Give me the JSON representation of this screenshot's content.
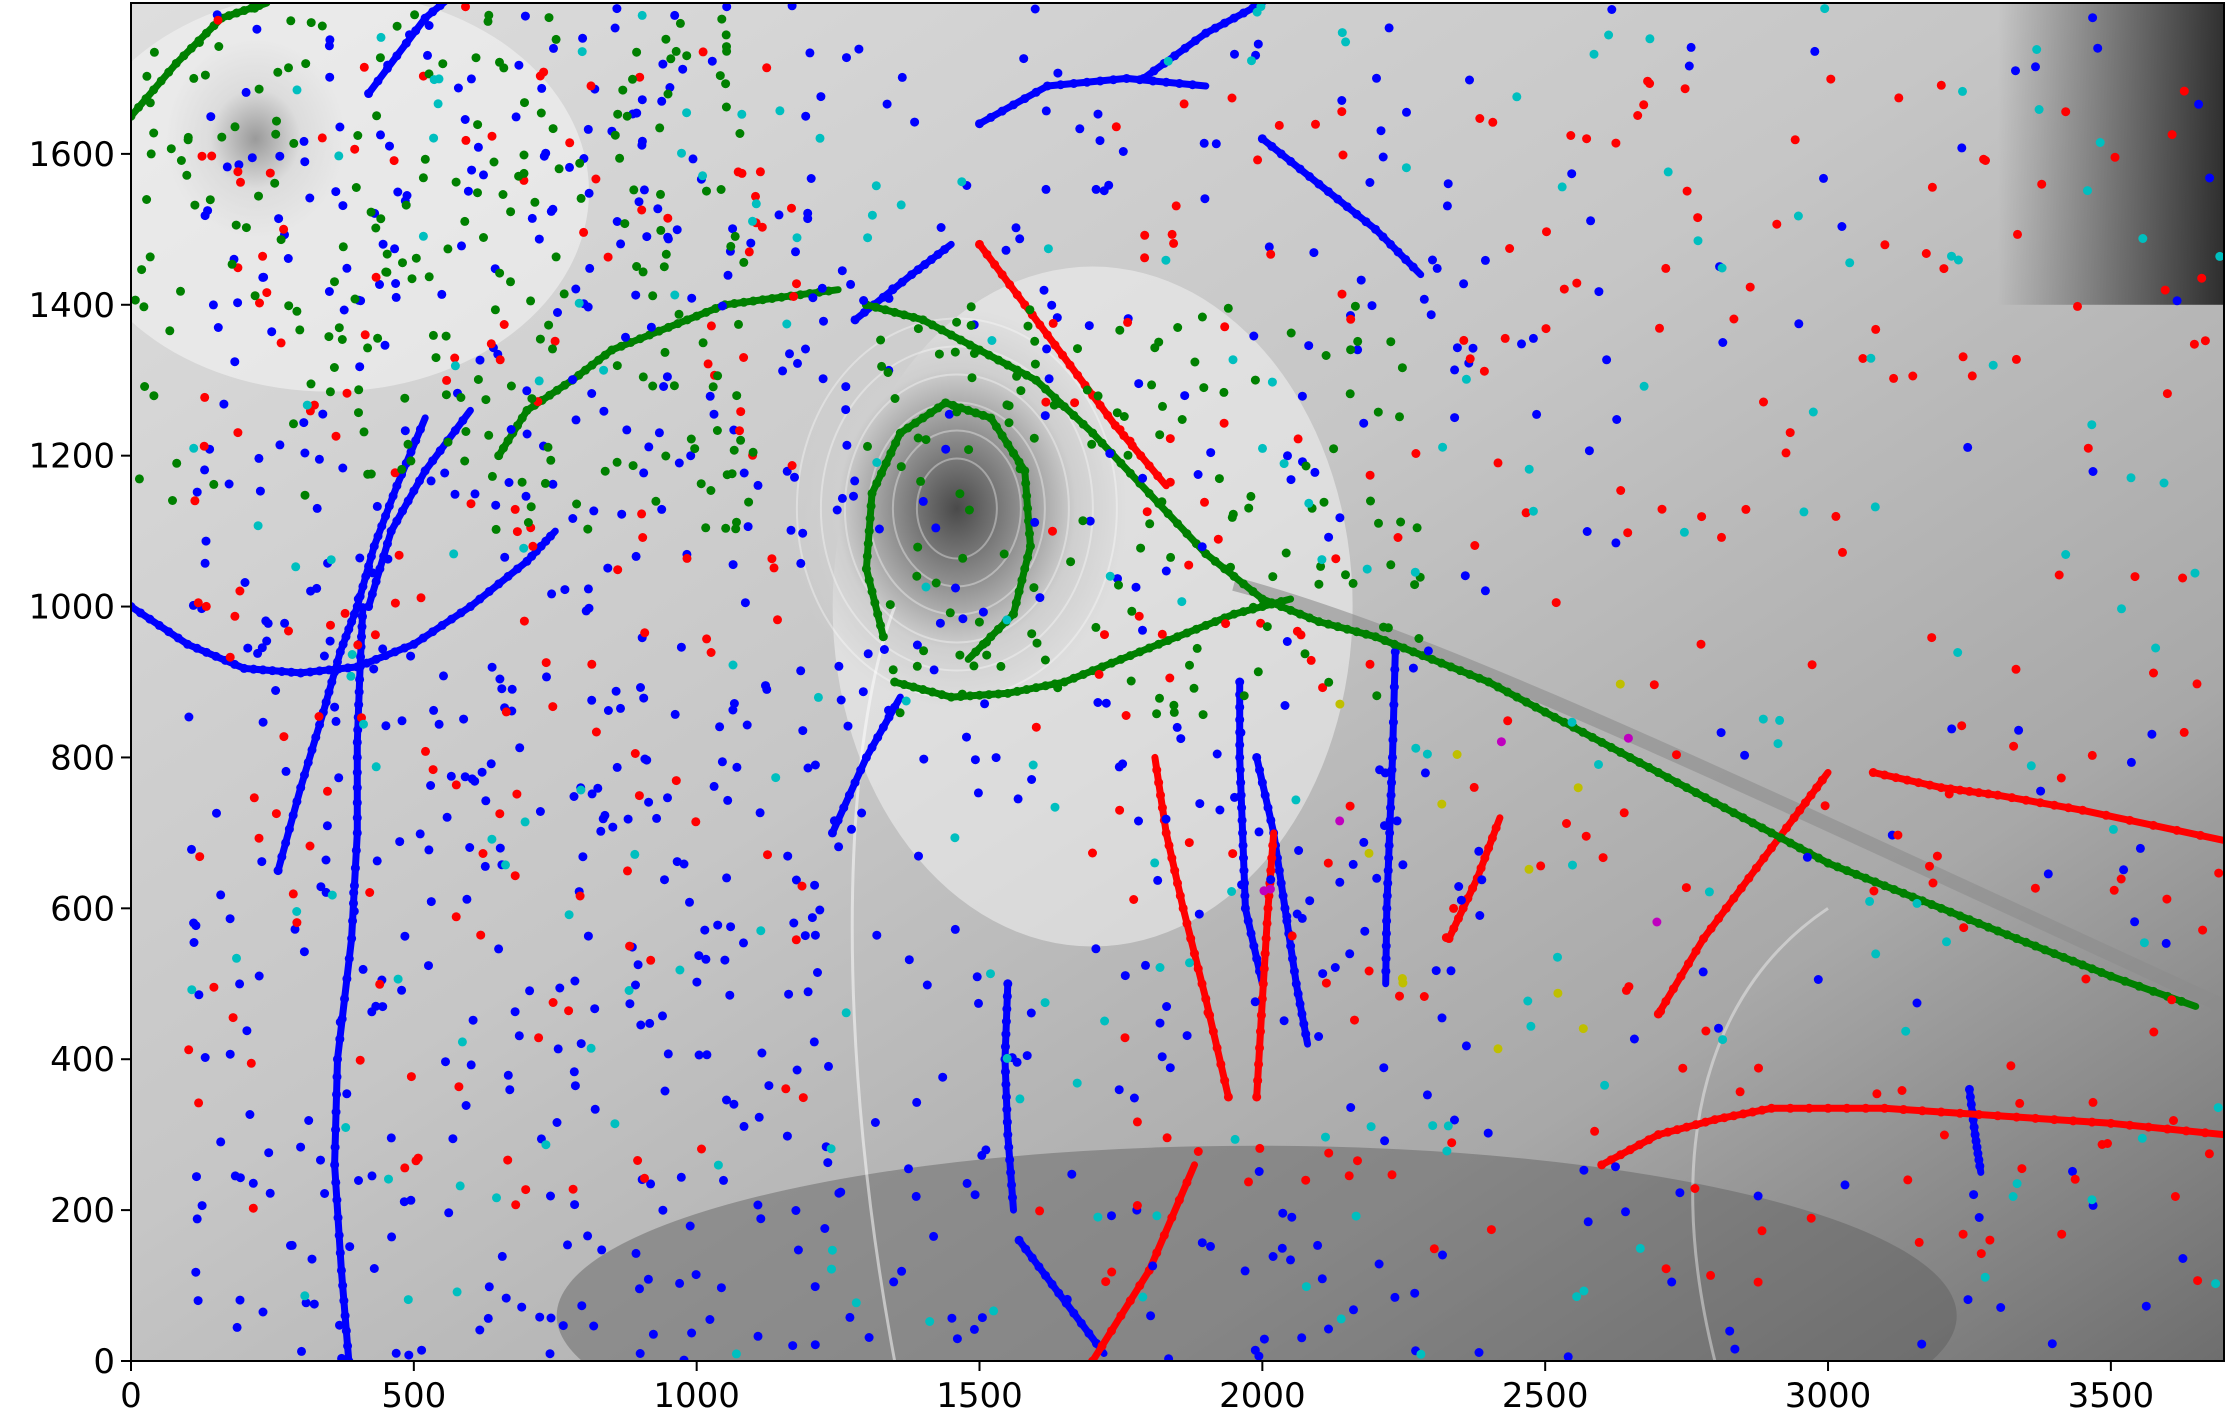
{
  "chart_data": {
    "type": "scatter",
    "title": "",
    "xlabel": "",
    "ylabel": "",
    "xlim": [
      0,
      3700
    ],
    "ylim": [
      0,
      1800
    ],
    "x_ticks": [
      0,
      500,
      1000,
      1500,
      2000,
      2500,
      3000,
      3500
    ],
    "y_ticks": [
      0,
      200,
      400,
      600,
      800,
      1000,
      1200,
      1400,
      1600
    ],
    "x_tick_labels": [
      "0",
      "500",
      "1000",
      "1500",
      "2000",
      "2500",
      "3000",
      "3500"
    ],
    "y_tick_labels": [
      "0",
      "200",
      "400",
      "600",
      "800",
      "1000",
      "1200",
      "1400",
      "1600"
    ],
    "grid": false,
    "legend": "none",
    "background": "grayscale density field",
    "colors": {
      "blue": "#0000ff",
      "red": "#ff0000",
      "green": "#008000",
      "cyan": "#00bfbf",
      "yellow": "#bfbf00",
      "magenta": "#bf00bf"
    },
    "series": [
      {
        "color": "blue",
        "paths": [
          [
            [
              0,
              1000
            ],
            [
              100,
              950
            ],
            [
              200,
              918
            ],
            [
              300,
              912
            ],
            [
              400,
              920
            ],
            [
              500,
              950
            ],
            [
              600,
              1000
            ],
            [
              700,
              1060
            ],
            [
              750,
              1100
            ]
          ],
          [
            [
              385,
              0
            ],
            [
              372,
              120
            ],
            [
              360,
              260
            ],
            [
              365,
              400
            ],
            [
              390,
              560
            ],
            [
              400,
              700
            ],
            [
              400,
              820
            ],
            [
              405,
              920
            ],
            [
              410,
              1000
            ]
          ],
          [
            [
              260,
              650
            ],
            [
              300,
              760
            ],
            [
              340,
              860
            ],
            [
              370,
              940
            ],
            [
              400,
              1000
            ],
            [
              430,
              1080
            ],
            [
              470,
              1160
            ],
            [
              520,
              1250
            ]
          ],
          [
            [
              420,
              1000
            ],
            [
              460,
              1100
            ],
            [
              520,
              1180
            ],
            [
              600,
              1260
            ]
          ],
          [
            [
              1550,
              500
            ],
            [
              1545,
              400
            ],
            [
              1550,
              300
            ],
            [
              1560,
              200
            ]
          ],
          [
            [
              1570,
              160
            ],
            [
              1640,
              90
            ],
            [
              1720,
              10
            ]
          ],
          [
            [
              1960,
              900
            ],
            [
              1960,
              800
            ],
            [
              1965,
              700
            ],
            [
              1970,
              600
            ],
            [
              2000,
              500
            ]
          ],
          [
            [
              1990,
              800
            ],
            [
              2020,
              700
            ],
            [
              2040,
              600
            ],
            [
              2060,
              500
            ],
            [
              2080,
              420
            ]
          ],
          [
            [
              2235,
              940
            ],
            [
              2230,
              800
            ],
            [
              2225,
              700
            ],
            [
              2220,
              600
            ],
            [
              2218,
              500
            ]
          ],
          [
            [
              1240,
              700
            ],
            [
              1300,
              800
            ],
            [
              1360,
              880
            ]
          ],
          [
            [
              1280,
              1380
            ],
            [
              1380,
              1440
            ],
            [
              1450,
              1480
            ]
          ],
          [
            [
              1500,
              1640
            ],
            [
              1620,
              1690
            ],
            [
              1760,
              1700
            ],
            [
              1900,
              1690
            ]
          ],
          [
            [
              2000,
              1620
            ],
            [
              2100,
              1560
            ],
            [
              2200,
              1500
            ],
            [
              2280,
              1440
            ]
          ],
          [
            [
              420,
              1680
            ],
            [
              520,
              1780
            ],
            [
              600,
              1830
            ]
          ],
          [
            [
              1790,
              1700
            ],
            [
              1900,
              1760
            ],
            [
              2000,
              1800
            ]
          ],
          [
            [
              3250,
              360
            ],
            [
              3260,
              300
            ],
            [
              3270,
              250
            ]
          ]
        ]
      },
      {
        "color": "red",
        "paths": [
          [
            [
              1500,
              1480
            ],
            [
              1580,
              1400
            ],
            [
              1660,
              1320
            ],
            [
              1740,
              1240
            ],
            [
              1830,
              1160
            ]
          ],
          [
            [
              1940,
              350
            ],
            [
              1900,
              480
            ],
            [
              1860,
              600
            ],
            [
              1830,
              700
            ],
            [
              1810,
              800
            ]
          ],
          [
            [
              1990,
              350
            ],
            [
              2000,
              480
            ],
            [
              2010,
              600
            ],
            [
              2020,
              700
            ]
          ],
          [
            [
              2600,
              260
            ],
            [
              2700,
              300
            ],
            [
              2800,
              320
            ],
            [
              2900,
              335
            ],
            [
              3100,
              335
            ],
            [
              3300,
              325
            ],
            [
              3500,
              315
            ],
            [
              3700,
              300
            ]
          ],
          [
            [
              2700,
              460
            ],
            [
              2780,
              560
            ],
            [
              2860,
              640
            ],
            [
              2940,
              720
            ],
            [
              3000,
              780
            ]
          ],
          [
            [
              3080,
              780
            ],
            [
              3200,
              760
            ],
            [
              3300,
              750
            ],
            [
              3450,
              730
            ],
            [
              3700,
              690
            ]
          ],
          [
            [
              2330,
              560
            ],
            [
              2380,
              640
            ],
            [
              2420,
              720
            ]
          ],
          [
            [
              1700,
              0
            ],
            [
              1800,
              120
            ],
            [
              1880,
              260
            ]
          ]
        ]
      },
      {
        "color": "green",
        "paths": [
          [
            [
              1300,
              1400
            ],
            [
              1400,
              1380
            ],
            [
              1500,
              1340
            ],
            [
              1600,
              1300
            ],
            [
              1700,
              1230
            ],
            [
              1800,
              1150
            ],
            [
              1900,
              1070
            ],
            [
              2000,
              1010
            ],
            [
              2100,
              980
            ],
            [
              2200,
              960
            ],
            [
              2300,
              930
            ],
            [
              2400,
              900
            ],
            [
              2500,
              860
            ],
            [
              2600,
              820
            ],
            [
              2700,
              780
            ],
            [
              2800,
              740
            ],
            [
              2900,
              700
            ],
            [
              3000,
              660
            ],
            [
              3100,
              630
            ],
            [
              3200,
              600
            ],
            [
              3300,
              570
            ],
            [
              3400,
              540
            ],
            [
              3500,
              510
            ],
            [
              3650,
              470
            ]
          ],
          [
            [
              1350,
              900
            ],
            [
              1450,
              880
            ],
            [
              1550,
              885
            ],
            [
              1650,
              900
            ],
            [
              1750,
              930
            ],
            [
              1850,
              960
            ],
            [
              1950,
              990
            ],
            [
              2050,
              1010
            ]
          ],
          [
            [
              1330,
              960
            ],
            [
              1300,
              1050
            ],
            [
              1310,
              1150
            ],
            [
              1360,
              1230
            ],
            [
              1440,
              1270
            ],
            [
              1520,
              1250
            ],
            [
              1580,
              1180
            ],
            [
              1590,
              1080
            ],
            [
              1560,
              990
            ],
            [
              1480,
              930
            ]
          ],
          [
            [
              650,
              1200
            ],
            [
              700,
              1260
            ],
            [
              780,
              1300
            ],
            [
              850,
              1340
            ],
            [
              950,
              1370
            ],
            [
              1050,
              1400
            ],
            [
              1150,
              1410
            ],
            [
              1250,
              1420
            ]
          ],
          [
            [
              0,
              1650
            ],
            [
              80,
              1720
            ],
            [
              160,
              1780
            ],
            [
              240,
              1800
            ]
          ]
        ]
      }
    ]
  }
}
